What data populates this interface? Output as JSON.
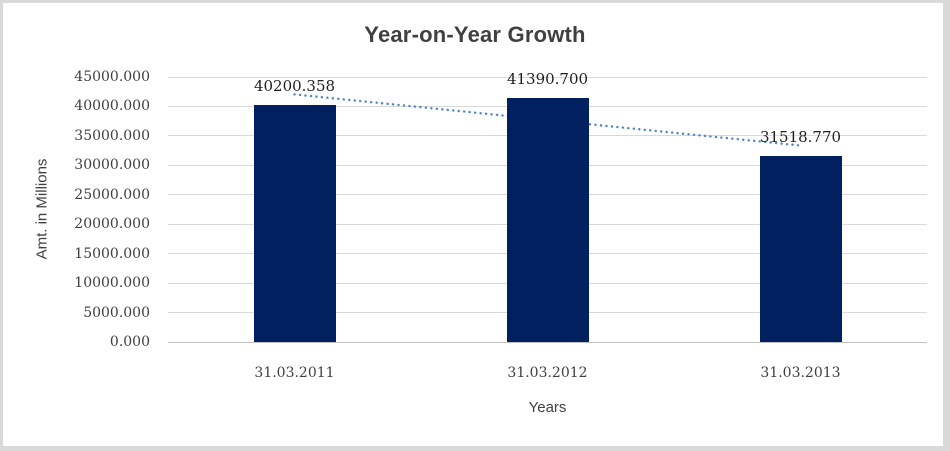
{
  "chart_data": {
    "type": "bar",
    "title": "Year-on-Year Growth",
    "xlabel": "Years",
    "ylabel": "Amt. in Millions",
    "categories": [
      "31.03.2011",
      "31.03.2012",
      "31.03.2013"
    ],
    "values": [
      40200.358,
      41390.7,
      31518.77
    ],
    "value_labels": [
      "40200.358",
      "41390.700",
      "31518.770"
    ],
    "ylim": [
      0,
      45000
    ],
    "ytick_step": 5000,
    "ytick_labels": [
      "0.000",
      "5000.000",
      "10000.000",
      "15000.000",
      "20000.000",
      "25000.000",
      "30000.000",
      "35000.000",
      "40000.000",
      "45000.000"
    ],
    "grid": true,
    "legend": "none",
    "colors": {
      "bar": "#002060",
      "gridline": "#d9d9d9",
      "axis_line": "#bfbfbf",
      "trendline": "#4a86c8",
      "title_text": "#404040",
      "tick_text": "#3f3f3f",
      "frame": "#d9d9d9"
    },
    "trendline": {
      "type": "linear",
      "style": "dotted",
      "color": "#4a86c8",
      "start_value": 42044,
      "end_value": 33362
    }
  }
}
